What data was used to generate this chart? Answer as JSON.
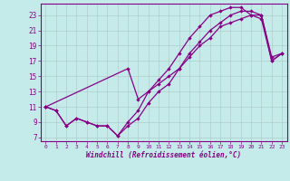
{
  "xlabel": "Windchill (Refroidissement éolien,°C)",
  "background_color": "#c5eaea",
  "line_color": "#880088",
  "grid_color": "#b0cccc",
  "xlim": [
    -0.5,
    23.5
  ],
  "ylim": [
    6.5,
    24.5
  ],
  "xticks": [
    0,
    1,
    2,
    3,
    4,
    5,
    6,
    7,
    8,
    9,
    10,
    11,
    12,
    13,
    14,
    15,
    16,
    17,
    18,
    19,
    20,
    21,
    22,
    23
  ],
  "yticks": [
    7,
    9,
    11,
    13,
    15,
    17,
    19,
    21,
    23
  ],
  "line1_x": [
    0,
    1,
    2,
    3,
    4,
    5,
    6,
    7,
    8,
    9,
    10,
    11,
    12,
    13,
    14,
    15,
    16,
    17,
    18,
    19,
    20,
    21,
    22,
    23
  ],
  "line1_y": [
    11,
    10.5,
    8.5,
    9.5,
    9,
    8.5,
    8.5,
    7.2,
    8.5,
    9.5,
    11.5,
    13,
    14,
    16,
    18,
    19.5,
    21,
    22,
    23,
    23.5,
    23.5,
    23,
    17.5,
    18
  ],
  "line2_x": [
    0,
    8,
    9,
    10,
    11,
    12,
    13,
    14,
    15,
    16,
    17,
    18,
    19,
    20,
    21,
    22,
    23
  ],
  "line2_y": [
    11,
    16,
    12,
    13,
    14,
    15,
    16,
    17.5,
    19,
    20,
    21.5,
    22,
    22.5,
    23,
    22.5,
    17,
    18
  ],
  "line3_x": [
    0,
    1,
    2,
    3,
    4,
    5,
    6,
    7,
    8,
    9,
    10,
    11,
    12,
    13,
    14,
    15,
    16,
    17,
    18,
    19,
    20,
    21,
    22,
    23
  ],
  "line3_y": [
    11,
    10.5,
    8.5,
    9.5,
    9,
    8.5,
    8.5,
    7.2,
    9,
    10.5,
    13,
    14.5,
    16,
    18,
    20,
    21.5,
    23,
    23.5,
    24,
    24,
    23,
    23,
    17,
    18
  ]
}
